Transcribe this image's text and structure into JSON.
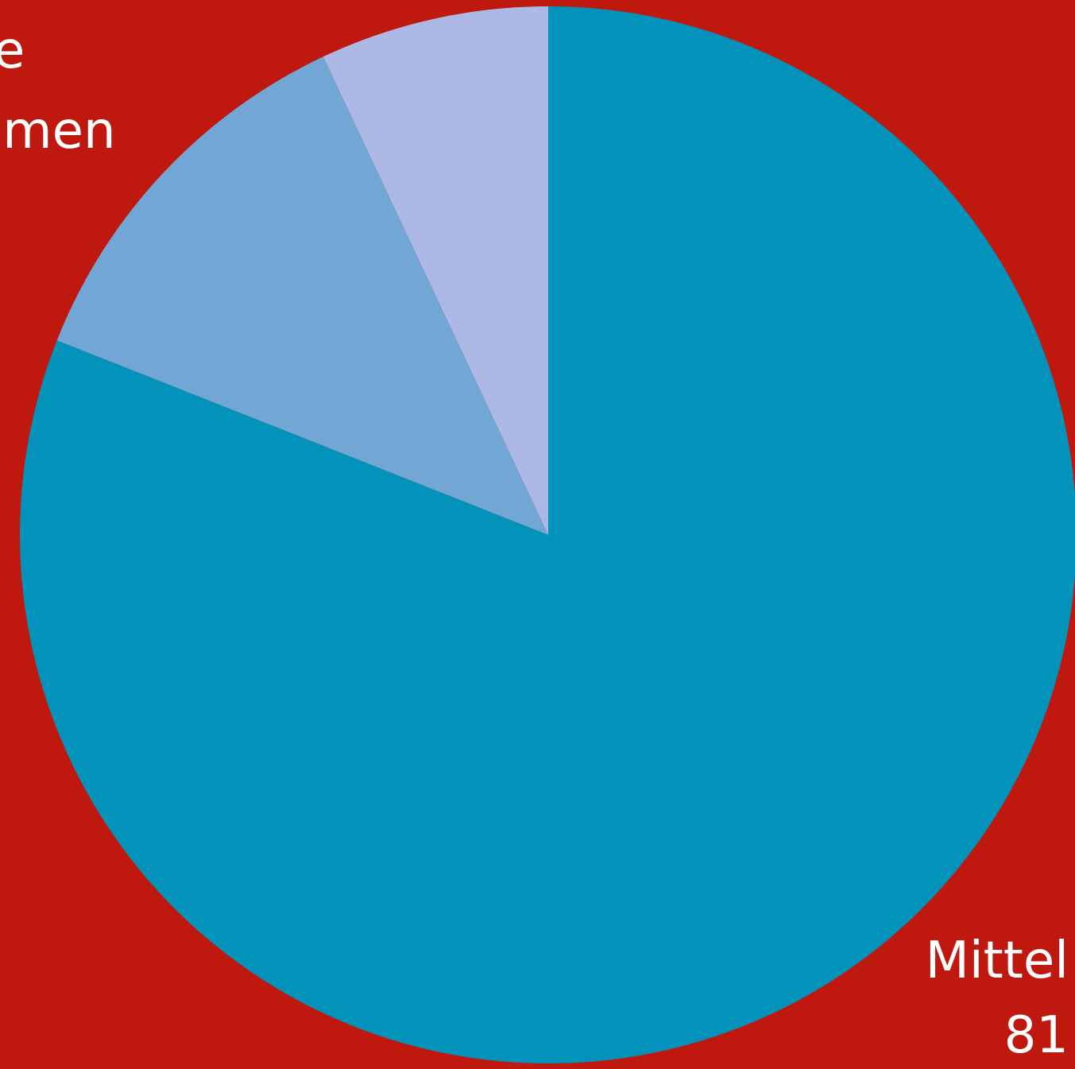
{
  "colors": {
    "background": "#bf180e",
    "label_text": "#ffffff"
  },
  "chart_data": {
    "type": "pie",
    "start_angle_deg": 0,
    "direction": "clockwise",
    "slices": [
      {
        "label_lines": [
          "Mittel",
          "81"
        ],
        "value": 81,
        "color": "#0392b9"
      },
      {
        "label_lines": [],
        "value": 12,
        "color": "#72a6d4"
      },
      {
        "label_lines": [
          "e",
          "amen"
        ],
        "value": 7,
        "color": "#adb9e5"
      }
    ]
  }
}
